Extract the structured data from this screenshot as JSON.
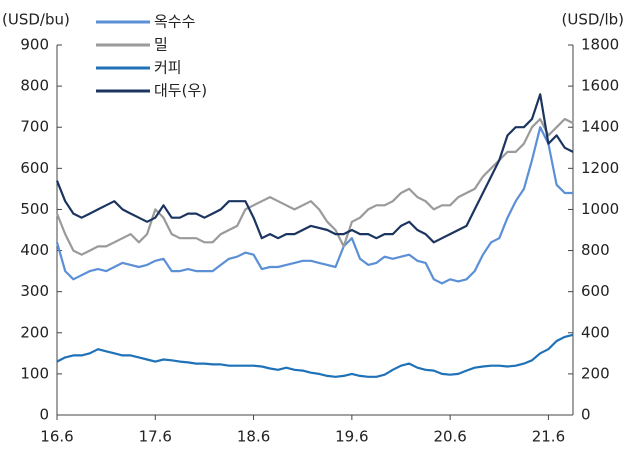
{
  "chart_data": {
    "type": "line",
    "y_label": "(USD/bu)",
    "y2_label": "(USD/lb)",
    "categories": [
      "16.6",
      null,
      null,
      null,
      null,
      null,
      null,
      null,
      null,
      null,
      null,
      null,
      "17.6",
      null,
      null,
      null,
      null,
      null,
      null,
      null,
      null,
      null,
      null,
      null,
      "18.6",
      null,
      null,
      null,
      null,
      null,
      null,
      null,
      null,
      null,
      null,
      null,
      "19.6",
      null,
      null,
      null,
      null,
      null,
      null,
      null,
      null,
      null,
      null,
      null,
      "20.6",
      null,
      null,
      null,
      null,
      null,
      null,
      null,
      null,
      null,
      null,
      null,
      "21.6",
      null,
      null,
      null
    ],
    "ylim": [
      0,
      900
    ],
    "yticks": [
      0,
      100,
      200,
      300,
      400,
      500,
      600,
      700,
      800,
      900
    ],
    "y2lim": [
      0,
      1800
    ],
    "y2ticks": [
      0,
      200,
      400,
      600,
      800,
      1000,
      1200,
      1400,
      1600,
      1800
    ],
    "series": [
      {
        "name": "옥수수",
        "color": "#5b8fd6",
        "values": [
          420,
          350,
          330,
          340,
          350,
          355,
          350,
          360,
          370,
          365,
          360,
          365,
          375,
          380,
          350,
          350,
          355,
          350,
          350,
          350,
          365,
          380,
          385,
          395,
          390,
          355,
          360,
          360,
          365,
          370,
          375,
          375,
          370,
          365,
          360,
          410,
          430,
          380,
          365,
          370,
          385,
          380,
          385,
          390,
          375,
          370,
          330,
          320,
          330,
          325,
          330,
          350,
          390,
          420,
          430,
          480,
          520,
          550,
          620,
          700,
          660,
          560,
          540,
          540
        ]
      },
      {
        "name": "밀",
        "color": "#9a9a9a",
        "values": [
          490,
          440,
          400,
          390,
          400,
          410,
          410,
          420,
          430,
          440,
          420,
          440,
          500,
          480,
          440,
          430,
          430,
          430,
          420,
          420,
          440,
          450,
          460,
          500,
          510,
          520,
          530,
          520,
          510,
          500,
          510,
          520,
          500,
          470,
          450,
          410,
          470,
          480,
          500,
          510,
          510,
          520,
          540,
          550,
          530,
          520,
          500,
          510,
          510,
          530,
          540,
          550,
          580,
          600,
          620,
          640,
          640,
          660,
          700,
          720,
          680,
          700,
          720,
          710
        ]
      },
      {
        "name": "커피",
        "color": "#1f72b8",
        "values": [
          130,
          140,
          145,
          145,
          150,
          160,
          155,
          150,
          145,
          145,
          140,
          135,
          130,
          135,
          133,
          130,
          128,
          125,
          125,
          123,
          123,
          120,
          120,
          120,
          120,
          118,
          113,
          110,
          115,
          110,
          108,
          103,
          100,
          95,
          93,
          95,
          100,
          95,
          93,
          93,
          98,
          110,
          120,
          125,
          115,
          110,
          108,
          100,
          98,
          100,
          108,
          115,
          118,
          120,
          120,
          118,
          120,
          125,
          133,
          150,
          160,
          180,
          190,
          195
        ]
      },
      {
        "name": "대두(우)",
        "color": "#1c3560",
        "axis": "y2",
        "values": [
          1140,
          1040,
          980,
          960,
          980,
          1000,
          1020,
          1040,
          1000,
          980,
          960,
          940,
          960,
          1020,
          960,
          960,
          980,
          980,
          960,
          980,
          1000,
          1040,
          1040,
          1040,
          960,
          860,
          880,
          860,
          880,
          880,
          900,
          920,
          910,
          900,
          880,
          880,
          900,
          880,
          880,
          860,
          880,
          880,
          920,
          940,
          900,
          880,
          840,
          860,
          880,
          900,
          920,
          1000,
          1080,
          1160,
          1240,
          1360,
          1400,
          1400,
          1440,
          1560,
          1320,
          1360,
          1300,
          1280
        ]
      }
    ]
  }
}
